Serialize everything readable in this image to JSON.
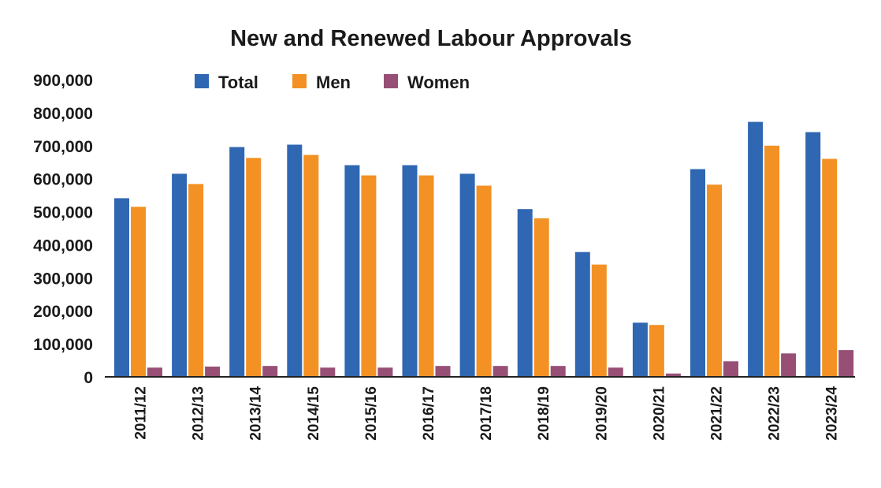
{
  "chart_data": {
    "type": "bar",
    "title": "New and Renewed Labour Approvals",
    "xlabel": "",
    "ylabel": "",
    "ylim": [
      0,
      900000
    ],
    "yticks": [
      0,
      100000,
      200000,
      300000,
      400000,
      500000,
      600000,
      700000,
      800000,
      900000
    ],
    "ytick_labels": [
      "0",
      "100,000",
      "200,000",
      "300,000",
      "400,000",
      "500,000",
      "600,000",
      "700,000",
      "800,000",
      "900,000"
    ],
    "grid": false,
    "legend_position": "top",
    "categories": [
      "2011/12",
      "2012/13",
      "2013/14",
      "2014/15",
      "2015/16",
      "2016/17",
      "2017/18",
      "2018/19",
      "2019/20",
      "2020/21",
      "2021/22",
      "2022/23",
      "2023/24"
    ],
    "series": [
      {
        "name": "Total",
        "color": "#2f67b2",
        "values": [
          541000,
          615000,
          696000,
          703000,
          641000,
          641000,
          615000,
          508000,
          378000,
          164000,
          629000,
          772000,
          741000
        ]
      },
      {
        "name": "Men",
        "color": "#f39124",
        "values": [
          515000,
          584000,
          663000,
          672000,
          610000,
          610000,
          579000,
          480000,
          340000,
          157000,
          582000,
          700000,
          660000
        ]
      },
      {
        "name": "Women",
        "color": "#974f76",
        "values": [
          28000,
          31000,
          33000,
          28000,
          28000,
          33000,
          33000,
          33000,
          28000,
          10000,
          47000,
          71000,
          81000
        ]
      }
    ]
  }
}
